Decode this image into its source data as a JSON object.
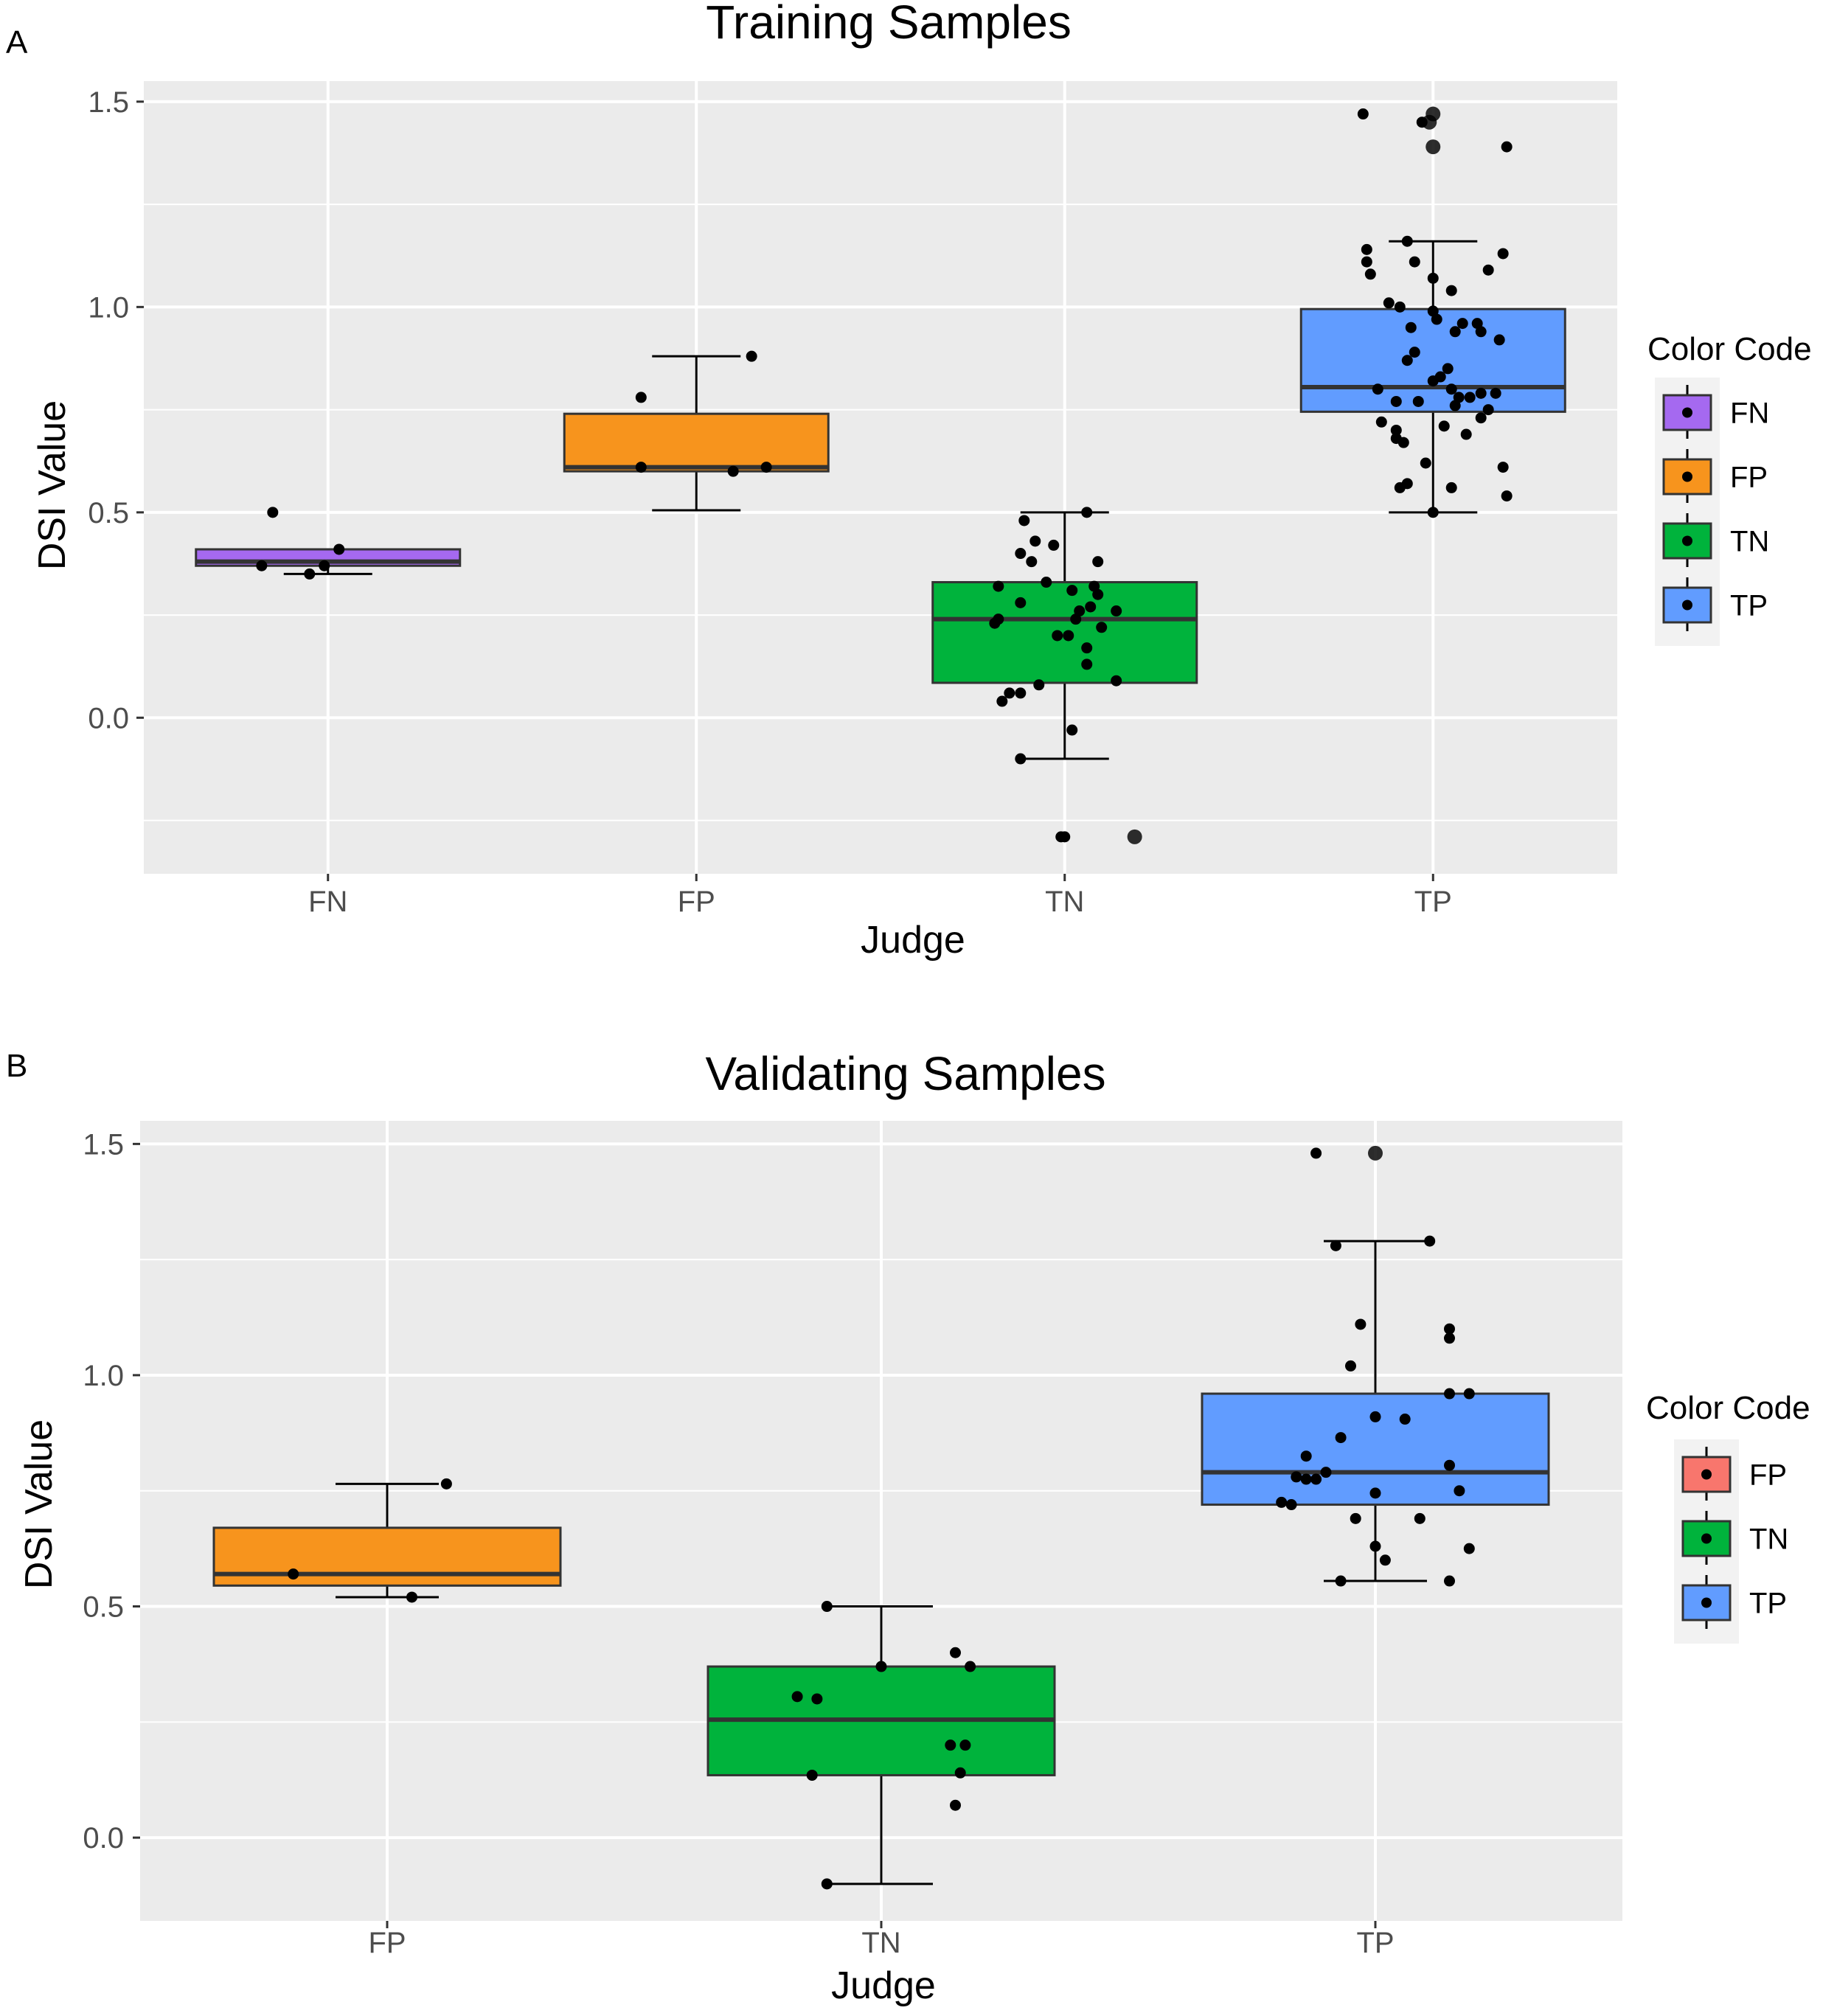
{
  "colors": {
    "panel_bg": "#ebebeb",
    "grid": "#ffffff",
    "FN": "#a569f0",
    "FP": "#f7941d",
    "FP_legend_B": "#f8766d",
    "TN": "#00b33c",
    "TP": "#619cff",
    "outline": "#333333",
    "point": "#000000",
    "tick_text": "#4d4d4d",
    "text": "#000000"
  },
  "chart_data": [
    {
      "panel_label": "A",
      "type": "box",
      "title": "Training Samples",
      "xlabel": "Judge",
      "ylabel": "DSI Value",
      "ylim": [
        -0.38,
        1.55
      ],
      "yticks": [
        0.0,
        0.5,
        1.0,
        1.5
      ],
      "ytick_labels": [
        "0.0",
        "0.5",
        "1.0",
        "1.5"
      ],
      "categories": [
        "FN",
        "FP",
        "TN",
        "TP"
      ],
      "grid": true,
      "legend": {
        "title": "Color Code",
        "position": "right",
        "entries": [
          {
            "label": "FN",
            "color_key": "FN"
          },
          {
            "label": "FP",
            "color_key": "FP"
          },
          {
            "label": "TN",
            "color_key": "TN"
          },
          {
            "label": "TP",
            "color_key": "TP"
          }
        ]
      },
      "boxes": [
        {
          "category": "FN",
          "color_key": "FN",
          "q1": 0.37,
          "median": 0.38,
          "q3": 0.41,
          "whisker_low": 0.35,
          "whisker_high": 0.41
        },
        {
          "category": "FP",
          "color_key": "FP",
          "q1": 0.6,
          "median": 0.61,
          "q3": 0.74,
          "whisker_low": 0.505,
          "whisker_high": 0.88
        },
        {
          "category": "TN",
          "color_key": "TN",
          "q1": 0.085,
          "median": 0.24,
          "q3": 0.33,
          "whisker_low": -0.1,
          "whisker_high": 0.5
        },
        {
          "category": "TP",
          "color_key": "TP",
          "q1": 0.745,
          "median": 0.805,
          "q3": 0.995,
          "whisker_low": 0.5,
          "whisker_high": 1.16
        }
      ],
      "points": [
        {
          "category": "FN",
          "values": [
            0.5,
            0.37,
            0.35,
            0.41,
            0.37
          ],
          "jitter": [
            -0.15,
            -0.18,
            -0.05,
            0.03,
            -0.01
          ]
        },
        {
          "category": "FP",
          "values": [
            0.78,
            0.61,
            0.6,
            0.61,
            0.88
          ],
          "jitter": [
            -0.15,
            -0.15,
            0.1,
            0.19,
            0.15
          ]
        },
        {
          "category": "TN",
          "values": [
            0.48,
            0.43,
            0.4,
            0.38,
            0.42,
            0.5,
            0.38,
            0.32,
            0.33,
            0.31,
            0.3,
            0.32,
            0.28,
            0.27,
            0.26,
            0.26,
            0.24,
            0.24,
            0.23,
            0.22,
            0.2,
            0.2,
            0.17,
            0.13,
            0.09,
            0.08,
            0.06,
            0.06,
            0.04,
            -0.03,
            -0.1,
            -0.29,
            -0.29,
            -0.29
          ],
          "jitter": [
            -0.11,
            -0.08,
            -0.12,
            -0.09,
            -0.03,
            0.06,
            0.09,
            -0.18,
            -0.05,
            0.02,
            0.09,
            0.08,
            -0.12,
            0.07,
            0.04,
            0.14,
            -0.18,
            0.03,
            -0.19,
            0.1,
            -0.02,
            0.01,
            0.06,
            0.06,
            0.14,
            -0.07,
            -0.12,
            -0.15,
            -0.17,
            0.02,
            -0.12,
            -0.01,
            0.0,
            0.19
          ],
          "ring_ids": [
            33
          ]
        },
        {
          "category": "TP",
          "values": [
            1.47,
            1.45,
            1.45,
            1.47,
            1.39,
            1.39,
            1.16,
            1.14,
            1.13,
            1.11,
            1.11,
            1.08,
            1.09,
            1.07,
            1.04,
            1.01,
            1.0,
            0.99,
            0.97,
            0.96,
            0.96,
            0.95,
            0.94,
            0.94,
            0.92,
            0.89,
            0.87,
            0.85,
            0.83,
            0.82,
            0.8,
            0.8,
            0.79,
            0.79,
            0.78,
            0.78,
            0.77,
            0.77,
            0.76,
            0.75,
            0.73,
            0.72,
            0.71,
            0.7,
            0.69,
            0.68,
            0.67,
            0.62,
            0.61,
            0.57,
            0.56,
            0.56,
            0.54,
            0.5
          ],
          "jitter": [
            -0.19,
            -0.03,
            -0.01,
            0.0,
            0.0,
            0.2,
            -0.07,
            -0.18,
            0.19,
            -0.18,
            -0.05,
            -0.17,
            0.15,
            0.0,
            0.05,
            -0.12,
            -0.09,
            0.0,
            0.01,
            0.08,
            0.12,
            -0.06,
            0.06,
            0.13,
            0.18,
            -0.05,
            -0.07,
            0.04,
            0.02,
            0.0,
            -0.15,
            0.05,
            0.17,
            0.13,
            0.07,
            0.1,
            -0.1,
            -0.04,
            0.06,
            0.15,
            0.13,
            -0.14,
            0.03,
            -0.1,
            0.09,
            -0.1,
            -0.08,
            -0.02,
            0.19,
            -0.07,
            -0.09,
            0.05,
            0.2,
            0.0
          ],
          "ring_ids": [
            2,
            3,
            4
          ]
        }
      ]
    },
    {
      "panel_label": "B",
      "type": "box",
      "title": "Validating Samples",
      "xlabel": "Judge",
      "ylabel": "DSI Value",
      "ylim": [
        -0.18,
        1.55
      ],
      "yticks": [
        0.0,
        0.5,
        1.0,
        1.5
      ],
      "ytick_labels": [
        "0.0",
        "0.5",
        "1.0",
        "1.5"
      ],
      "categories": [
        "FP",
        "TN",
        "TP"
      ],
      "grid": true,
      "legend": {
        "title": "Color Code",
        "position": "right",
        "entries": [
          {
            "label": "FP",
            "color_key": "FP_legend_B"
          },
          {
            "label": "TN",
            "color_key": "TN"
          },
          {
            "label": "TP",
            "color_key": "TP"
          }
        ]
      },
      "boxes": [
        {
          "category": "FP",
          "color_key": "FP",
          "q1": 0.545,
          "median": 0.57,
          "q3": 0.67,
          "whisker_low": 0.52,
          "whisker_high": 0.765
        },
        {
          "category": "TN",
          "color_key": "TN",
          "q1": 0.135,
          "median": 0.255,
          "q3": 0.37,
          "whisker_low": -0.1,
          "whisker_high": 0.5
        },
        {
          "category": "TP",
          "color_key": "TP",
          "q1": 0.72,
          "median": 0.79,
          "q3": 0.96,
          "whisker_low": 0.555,
          "whisker_high": 1.29
        }
      ],
      "points": [
        {
          "category": "FP",
          "values": [
            0.57,
            0.52,
            0.765
          ],
          "jitter": [
            -0.19,
            0.05,
            0.12
          ]
        },
        {
          "category": "TN",
          "values": [
            0.5,
            0.4,
            0.37,
            0.37,
            0.305,
            0.3,
            0.2,
            0.2,
            0.14,
            0.135,
            0.07,
            -0.1
          ],
          "jitter": [
            -0.11,
            0.15,
            0.18,
            0.0,
            -0.17,
            -0.13,
            0.14,
            0.17,
            0.16,
            -0.14,
            0.15,
            -0.11
          ]
        },
        {
          "category": "TP",
          "values": [
            1.48,
            1.48,
            1.29,
            1.28,
            1.11,
            1.1,
            1.08,
            1.02,
            0.96,
            0.96,
            0.91,
            0.905,
            0.865,
            0.825,
            0.805,
            0.79,
            0.78,
            0.775,
            0.775,
            0.75,
            0.745,
            0.725,
            0.72,
            0.69,
            0.69,
            0.625,
            0.63,
            0.6,
            0.555,
            0.555
          ],
          "jitter": [
            -0.12,
            0.0,
            0.11,
            -0.08,
            -0.03,
            0.15,
            0.15,
            -0.05,
            0.15,
            0.19,
            0.0,
            0.06,
            -0.07,
            -0.14,
            0.15,
            -0.1,
            -0.16,
            -0.12,
            -0.14,
            0.17,
            0.0,
            -0.19,
            -0.17,
            -0.04,
            0.09,
            0.19,
            0.0,
            0.02,
            -0.07,
            0.15
          ],
          "ring_ids": [
            1
          ]
        }
      ]
    }
  ]
}
